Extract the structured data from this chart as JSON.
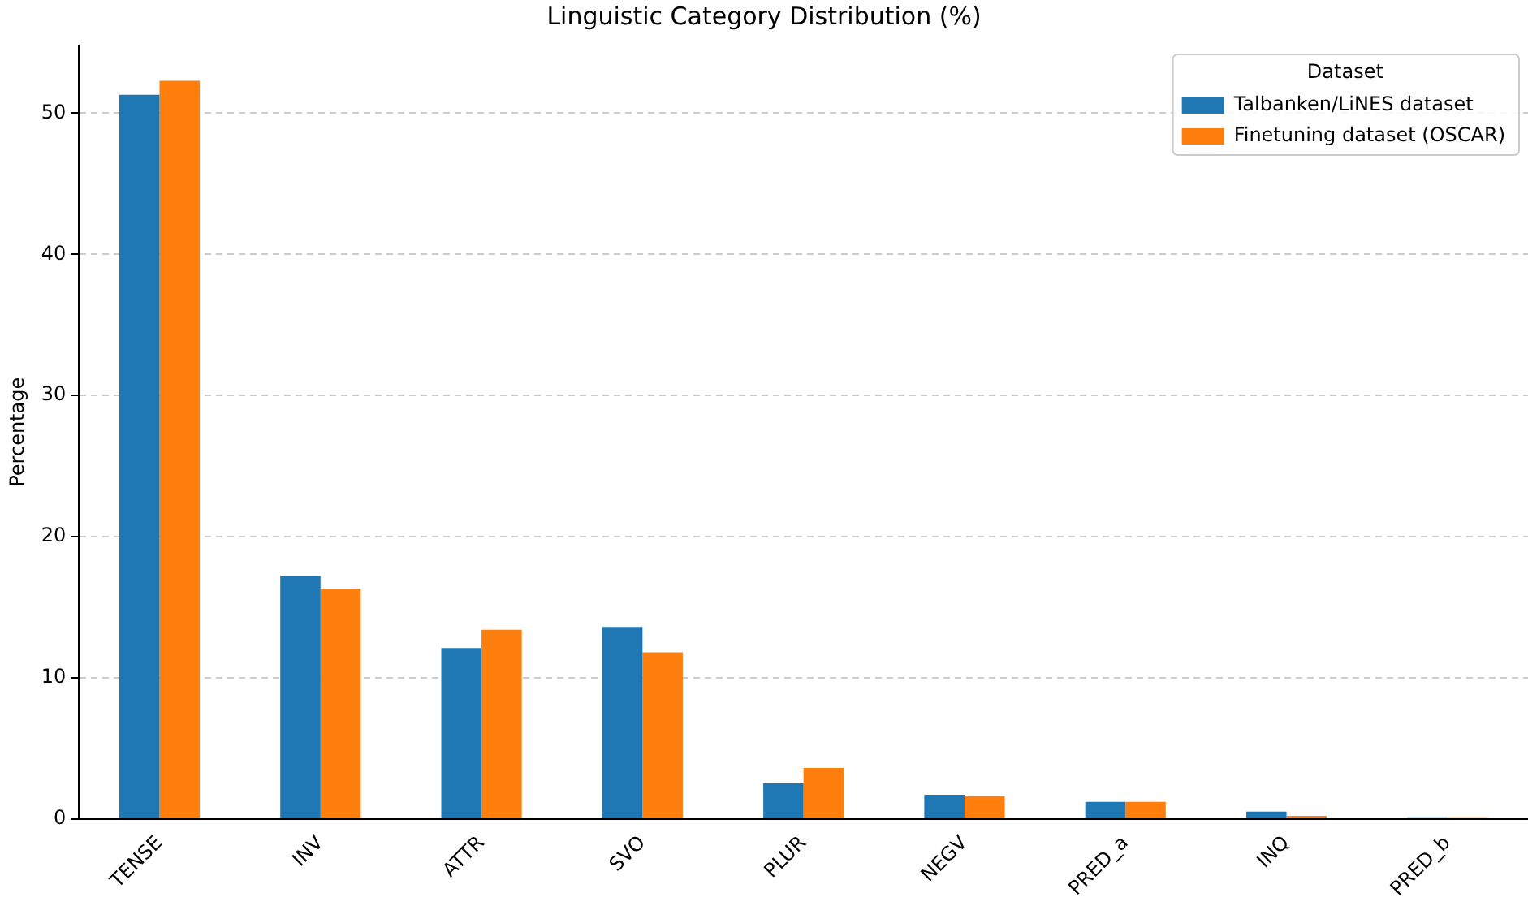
{
  "chart_data": {
    "type": "bar",
    "title": "Linguistic Category Distribution (%)",
    "ylabel": "Percentage",
    "legend_title": "Dataset",
    "categories": [
      "TENSE",
      "INV",
      "ATTR",
      "SVO",
      "PLUR",
      "NEGV",
      "PRED_a",
      "INQ",
      "PRED_b"
    ],
    "series": [
      {
        "name": "Talbanken/LiNES dataset",
        "color": "#1f77b4",
        "values": [
          51.3,
          17.2,
          12.1,
          13.6,
          2.5,
          1.7,
          1.2,
          0.5,
          0.1
        ]
      },
      {
        "name": "Finetuning dataset (OSCAR)",
        "color": "#ff7f0e",
        "values": [
          52.3,
          16.3,
          13.4,
          11.8,
          3.6,
          1.6,
          1.2,
          0.2,
          0.1
        ]
      }
    ],
    "ylim": [
      0,
      54.8
    ],
    "yticks": [
      0,
      10,
      20,
      30,
      40,
      50
    ],
    "grid": "y",
    "legend": "top right"
  }
}
